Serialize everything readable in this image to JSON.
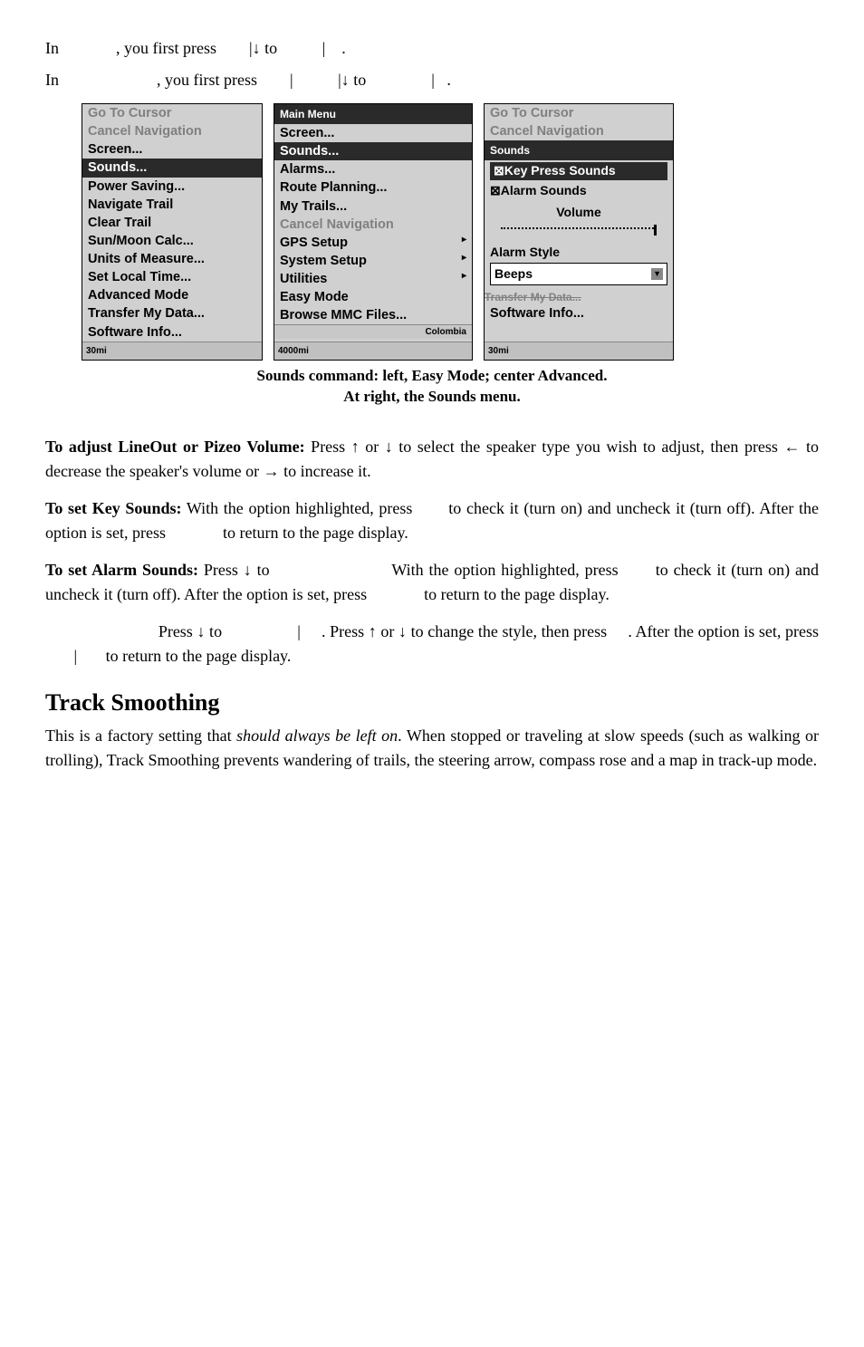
{
  "intro": {
    "line1_pre": "In",
    "line1_mid": ", you first press",
    "line1_arrow": "|↓ to",
    "line1_end": "|",
    "line2_pre": "In",
    "line2_mid": ", you first press",
    "line2_pipe": "|",
    "line2_arrow": "|↓ to",
    "line2_end": "|"
  },
  "left_menu": {
    "items": [
      {
        "label": "Go To Cursor",
        "disabled": true
      },
      {
        "label": "Cancel Navigation",
        "disabled": true
      },
      {
        "label": "Screen..."
      },
      {
        "label": "Sounds...",
        "highlighted": true
      },
      {
        "label": "Power Saving..."
      },
      {
        "label": "Navigate Trail"
      },
      {
        "label": "Clear Trail"
      },
      {
        "label": "Sun/Moon Calc..."
      },
      {
        "label": "Units of Measure..."
      },
      {
        "label": "Set Local Time..."
      },
      {
        "label": "Advanced Mode"
      },
      {
        "label": "Transfer My Data..."
      },
      {
        "label": "Software Info..."
      }
    ],
    "scale": "30mi"
  },
  "center_menu": {
    "header": "Main Menu",
    "items": [
      {
        "label": "Screen..."
      },
      {
        "label": "Sounds...",
        "highlighted": true
      },
      {
        "label": "Alarms..."
      },
      {
        "label": "Route Planning..."
      },
      {
        "label": "My Trails..."
      },
      {
        "label": "Cancel Navigation",
        "disabled": true
      },
      {
        "label": "GPS Setup",
        "arrow": true
      },
      {
        "label": "System Setup",
        "arrow": true
      },
      {
        "label": "Utilities",
        "arrow": true
      },
      {
        "label": "Easy Mode"
      },
      {
        "label": "Browse MMC Files..."
      }
    ],
    "colombia": "Colombia",
    "scale": "4000mi"
  },
  "right_menu": {
    "items_top": [
      {
        "label": "Go To Cursor",
        "disabled": true
      },
      {
        "label": "Cancel Navigation",
        "disabled": true
      }
    ],
    "sounds_header": "Sounds",
    "key_press": "⊠Key Press Sounds",
    "alarm_sounds": "⊠Alarm Sounds",
    "volume": "Volume",
    "alarm_style": "Alarm Style",
    "dropdown_value": "Beeps",
    "transfer_strike": "Transfer My Data...",
    "software_info": "Software Info...",
    "scale": "30mi"
  },
  "caption": {
    "line1": "Sounds command: left, Easy Mode; center Advanced.",
    "line2": "At right, the Sounds menu."
  },
  "body": {
    "p1_bold": "To adjust LineOut or Pizeo Volume:",
    "p1_rest": " Press ↑ or ↓ to select the speaker type you wish to adjust, then press ← to decrease the speaker's volume or → to increase it.",
    "p2_bold": "To set Key Sounds:",
    "p2_a": " With the option highlighted, press ",
    "p2_b": " to check it (turn on) and uncheck it (turn off). After the option is set, press ",
    "p2_c": " to return to the page display.",
    "p3_bold": "To set Alarm Sounds:",
    "p3_a": " Press ↓ to ",
    "p3_b": " With the option highlighted, press ",
    "p3_c": " to check it (turn on) and uncheck it (turn off). After the option is set, press ",
    "p3_d": " to return to the page display.",
    "p4_a": "Press ↓ to ",
    "p4_pipe": "|",
    "p4_b": ". Press ↑ or ↓ to change the style, then press ",
    "p4_c": ". After the option is set, press ",
    "p4_pipe2": "|",
    "p4_d": " to return to the page display.",
    "h2": "Track Smoothing",
    "p5_a": "This is a factory setting that ",
    "p5_italic": "should always be left on",
    "p5_b": ". When stopped or traveling at slow speeds (such as walking or trolling), Track Smoothing prevents wandering of trails, the steering arrow, compass rose and a map in track-up mode."
  }
}
